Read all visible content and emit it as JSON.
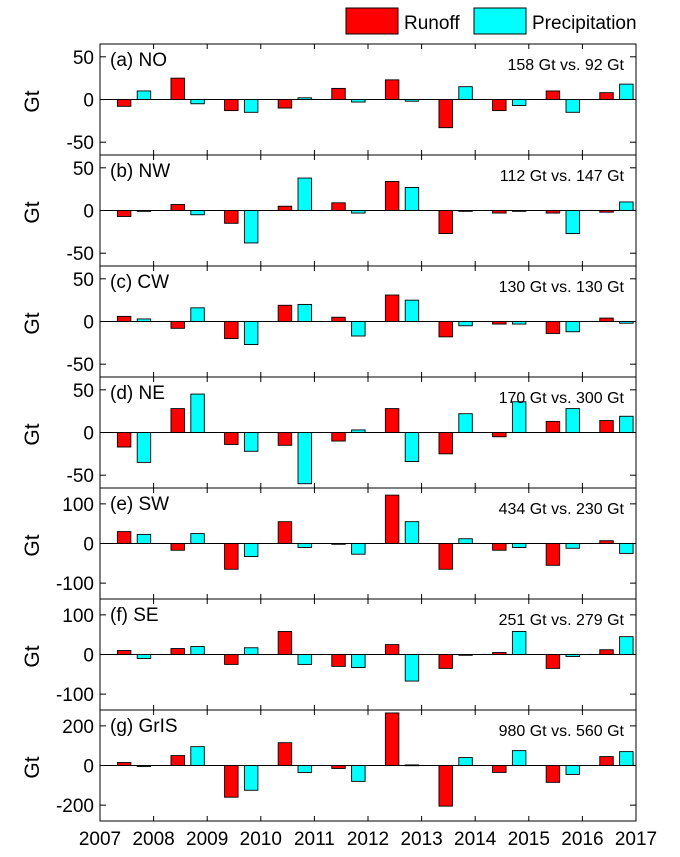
{
  "legend": {
    "placement": "top-right",
    "items": [
      {
        "label": "Runoff",
        "color": "#ff0000"
      },
      {
        "label": "Precipitation",
        "color": "#00ffff"
      }
    ]
  },
  "colors": {
    "runoff": "#ff0000",
    "precipitation": "#00ffff",
    "frame": "#000000"
  },
  "x_axis": {
    "ticks": [
      "2007",
      "2008",
      "2009",
      "2010",
      "2011",
      "2012",
      "2013",
      "2014",
      "2015",
      "2016",
      "2017"
    ]
  },
  "chart_data": [
    {
      "type": "bar",
      "panel_label": "(a) NO",
      "annotation": "158 Gt vs. 92 Gt",
      "ylabel": "Gt",
      "ylim": [
        -65,
        65
      ],
      "yticks": [
        50,
        0,
        -50
      ],
      "categories": [
        "2007",
        "2008",
        "2009",
        "2010",
        "2011",
        "2012",
        "2013",
        "2014",
        "2015",
        "2016"
      ],
      "series": [
        {
          "name": "Runoff",
          "values": [
            -8,
            25,
            -13,
            -10,
            13,
            23,
            -33,
            -13,
            10,
            8
          ]
        },
        {
          "name": "Precipitation",
          "values": [
            10,
            -5,
            -15,
            2,
            -3,
            -2,
            15,
            -7,
            -15,
            18
          ]
        }
      ]
    },
    {
      "type": "bar",
      "panel_label": "(b) NW",
      "annotation": "112 Gt vs. 147 Gt",
      "ylabel": "Gt",
      "ylim": [
        -65,
        65
      ],
      "yticks": [
        50,
        0,
        -50
      ],
      "categories": [
        "2007",
        "2008",
        "2009",
        "2010",
        "2011",
        "2012",
        "2013",
        "2014",
        "2015",
        "2016"
      ],
      "series": [
        {
          "name": "Runoff",
          "values": [
            -7,
            7,
            -15,
            5,
            9,
            34,
            -27,
            -3,
            -3,
            -2
          ]
        },
        {
          "name": "Precipitation",
          "values": [
            -1,
            -5,
            -38,
            38,
            -3,
            27,
            -1,
            -1,
            -27,
            10
          ]
        }
      ]
    },
    {
      "type": "bar",
      "panel_label": "(c) CW",
      "annotation": "130 Gt vs. 130 Gt",
      "ylabel": "Gt",
      "ylim": [
        -65,
        65
      ],
      "yticks": [
        50,
        0,
        -50
      ],
      "categories": [
        "2007",
        "2008",
        "2009",
        "2010",
        "2011",
        "2012",
        "2013",
        "2014",
        "2015",
        "2016"
      ],
      "series": [
        {
          "name": "Runoff",
          "values": [
            6,
            -8,
            -20,
            19,
            5,
            31,
            -18,
            -3,
            -14,
            4
          ]
        },
        {
          "name": "Precipitation",
          "values": [
            3,
            16,
            -27,
            20,
            -17,
            25,
            -5,
            -3,
            -12,
            -2
          ]
        }
      ]
    },
    {
      "type": "bar",
      "panel_label": "(d) NE",
      "annotation": "170 Gt vs. 300 Gt",
      "ylabel": "Gt",
      "ylim": [
        -65,
        65
      ],
      "yticks": [
        50,
        0,
        -50
      ],
      "categories": [
        "2007",
        "2008",
        "2009",
        "2010",
        "2011",
        "2012",
        "2013",
        "2014",
        "2015",
        "2016"
      ],
      "series": [
        {
          "name": "Runoff",
          "values": [
            -17,
            28,
            -14,
            -15,
            -10,
            28,
            -25,
            -5,
            13,
            14
          ]
        },
        {
          "name": "Precipitation",
          "values": [
            -35,
            45,
            -22,
            -60,
            3,
            -34,
            22,
            36,
            28,
            19
          ]
        }
      ]
    },
    {
      "type": "bar",
      "panel_label": "(e) SW",
      "annotation": "434 Gt vs. 230 Gt",
      "ylabel": "Gt",
      "ylim": [
        -140,
        140
      ],
      "yticks": [
        100,
        0,
        -100
      ],
      "categories": [
        "2007",
        "2008",
        "2009",
        "2010",
        "2011",
        "2012",
        "2013",
        "2014",
        "2015",
        "2016"
      ],
      "series": [
        {
          "name": "Runoff",
          "values": [
            30,
            -17,
            -65,
            55,
            0,
            122,
            -65,
            -17,
            -55,
            7
          ]
        },
        {
          "name": "Precipitation",
          "values": [
            23,
            25,
            -33,
            -10,
            -27,
            55,
            12,
            -10,
            -12,
            -25
          ]
        }
      ]
    },
    {
      "type": "bar",
      "panel_label": "(f) SE",
      "annotation": "251 Gt vs. 279 Gt",
      "ylabel": "Gt",
      "ylim": [
        -140,
        140
      ],
      "yticks": [
        100,
        0,
        -100
      ],
      "categories": [
        "2007",
        "2008",
        "2009",
        "2010",
        "2011",
        "2012",
        "2013",
        "2014",
        "2015",
        "2016"
      ],
      "series": [
        {
          "name": "Runoff",
          "values": [
            10,
            15,
            -25,
            58,
            -30,
            25,
            -35,
            5,
            -35,
            12
          ]
        },
        {
          "name": "Precipitation",
          "values": [
            -10,
            20,
            17,
            -25,
            -33,
            -67,
            -2,
            58,
            -5,
            45
          ]
        }
      ]
    },
    {
      "type": "bar",
      "panel_label": "(g) GrIS",
      "annotation": "980 Gt vs. 560 Gt",
      "ylabel": "Gt",
      "ylim": [
        -280,
        280
      ],
      "yticks": [
        200,
        0,
        -200
      ],
      "categories": [
        "2007",
        "2008",
        "2009",
        "2010",
        "2011",
        "2012",
        "2013",
        "2014",
        "2015",
        "2016"
      ],
      "series": [
        {
          "name": "Runoff",
          "values": [
            15,
            50,
            -160,
            115,
            -15,
            265,
            -205,
            -35,
            -85,
            45
          ]
        },
        {
          "name": "Precipitation",
          "values": [
            -5,
            95,
            -125,
            -35,
            -80,
            3,
            40,
            75,
            -45,
            70
          ]
        }
      ]
    }
  ]
}
